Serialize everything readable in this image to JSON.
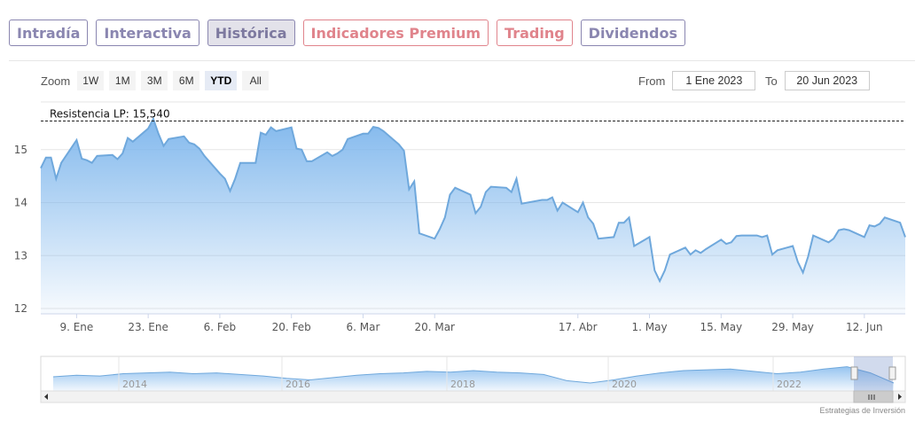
{
  "tabs": [
    {
      "label": "Intradía",
      "style": "normal"
    },
    {
      "label": "Interactiva",
      "style": "normal"
    },
    {
      "label": "Histórica",
      "style": "active"
    },
    {
      "label": "Indicadores Premium",
      "style": "red"
    },
    {
      "label": "Trading",
      "style": "red"
    },
    {
      "label": "Dividendos",
      "style": "normal"
    }
  ],
  "zoom": {
    "label": "Zoom",
    "buttons": [
      "1W",
      "1M",
      "3M",
      "6M",
      "YTD",
      "All"
    ],
    "selected": "YTD"
  },
  "range": {
    "from_label": "From",
    "from_value": "1 Ene 2023",
    "to_label": "To",
    "to_value": "20 Jun 2023"
  },
  "credit": "Estrategias de Inversión",
  "colors": {
    "line": "#6fa8dc",
    "fill_top": "#7cb5ec",
    "tab_normal": "#8a86b0",
    "tab_red": "#e0848c"
  },
  "chart_data": {
    "type": "area",
    "x_unit": "date",
    "ylim": [
      11.9,
      15.9
    ],
    "y_ticks": [
      12,
      13,
      14,
      15
    ],
    "x_ticks": [
      {
        "date": "2023-01-09",
        "label": "9. Ene"
      },
      {
        "date": "2023-01-23",
        "label": "23. Ene"
      },
      {
        "date": "2023-02-06",
        "label": "6. Feb"
      },
      {
        "date": "2023-02-20",
        "label": "20. Feb"
      },
      {
        "date": "2023-03-06",
        "label": "6. Mar"
      },
      {
        "date": "2023-03-20",
        "label": "20. Mar"
      },
      {
        "date": "2023-04-17",
        "label": "17. Abr"
      },
      {
        "date": "2023-05-01",
        "label": "1. May"
      },
      {
        "date": "2023-05-15",
        "label": "15. May"
      },
      {
        "date": "2023-05-29",
        "label": "29. May"
      },
      {
        "date": "2023-06-12",
        "label": "12. Jun"
      }
    ],
    "x_start": "2023-01-02",
    "x_end": "2023-06-20",
    "grid": true,
    "reference_line": {
      "value": 15.54,
      "label": "Resistencia LP: 15,540",
      "style": "dashed"
    },
    "series": [
      {
        "points": [
          [
            "2023-01-02",
            14.65
          ],
          [
            "2023-01-03",
            14.85
          ],
          [
            "2023-01-04",
            14.85
          ],
          [
            "2023-01-05",
            14.45
          ],
          [
            "2023-01-06",
            14.75
          ],
          [
            "2023-01-09",
            15.18
          ],
          [
            "2023-01-10",
            14.83
          ],
          [
            "2023-01-11",
            14.8
          ],
          [
            "2023-01-12",
            14.75
          ],
          [
            "2023-01-13",
            14.88
          ],
          [
            "2023-01-16",
            14.9
          ],
          [
            "2023-01-17",
            14.82
          ],
          [
            "2023-01-18",
            14.93
          ],
          [
            "2023-01-19",
            15.22
          ],
          [
            "2023-01-20",
            15.15
          ],
          [
            "2023-01-23",
            15.4
          ],
          [
            "2023-01-24",
            15.58
          ],
          [
            "2023-01-25",
            15.3
          ],
          [
            "2023-01-26",
            15.07
          ],
          [
            "2023-01-27",
            15.2
          ],
          [
            "2023-01-30",
            15.25
          ],
          [
            "2023-01-31",
            15.13
          ],
          [
            "2023-02-01",
            15.1
          ],
          [
            "2023-02-02",
            15.02
          ],
          [
            "2023-02-03",
            14.88
          ],
          [
            "2023-02-06",
            14.55
          ],
          [
            "2023-02-07",
            14.45
          ],
          [
            "2023-02-08",
            14.22
          ],
          [
            "2023-02-09",
            14.45
          ],
          [
            "2023-02-10",
            14.75
          ],
          [
            "2023-02-13",
            14.75
          ],
          [
            "2023-02-14",
            15.32
          ],
          [
            "2023-02-15",
            15.28
          ],
          [
            "2023-02-16",
            15.42
          ],
          [
            "2023-02-17",
            15.35
          ],
          [
            "2023-02-20",
            15.42
          ],
          [
            "2023-02-21",
            15.02
          ],
          [
            "2023-02-22",
            15.0
          ],
          [
            "2023-02-23",
            14.78
          ],
          [
            "2023-02-24",
            14.78
          ],
          [
            "2023-02-27",
            14.95
          ],
          [
            "2023-02-28",
            14.88
          ],
          [
            "2023-03-01",
            14.93
          ],
          [
            "2023-03-02",
            15.0
          ],
          [
            "2023-03-03",
            15.2
          ],
          [
            "2023-03-06",
            15.3
          ],
          [
            "2023-03-07",
            15.3
          ],
          [
            "2023-03-08",
            15.43
          ],
          [
            "2023-03-09",
            15.41
          ],
          [
            "2023-03-10",
            15.35
          ],
          [
            "2023-03-13",
            15.1
          ],
          [
            "2023-03-14",
            14.98
          ],
          [
            "2023-03-15",
            14.25
          ],
          [
            "2023-03-16",
            14.4
          ],
          [
            "2023-03-17",
            13.42
          ],
          [
            "2023-03-20",
            13.32
          ],
          [
            "2023-03-21",
            13.5
          ],
          [
            "2023-03-22",
            13.72
          ],
          [
            "2023-03-23",
            14.15
          ],
          [
            "2023-03-24",
            14.28
          ],
          [
            "2023-03-27",
            14.15
          ],
          [
            "2023-03-28",
            13.8
          ],
          [
            "2023-03-29",
            13.92
          ],
          [
            "2023-03-30",
            14.2
          ],
          [
            "2023-03-31",
            14.3
          ],
          [
            "2023-04-03",
            14.28
          ],
          [
            "2023-04-04",
            14.2
          ],
          [
            "2023-04-05",
            14.45
          ],
          [
            "2023-04-06",
            13.98
          ],
          [
            "2023-04-10",
            14.05
          ],
          [
            "2023-04-11",
            14.05
          ],
          [
            "2023-04-12",
            14.1
          ],
          [
            "2023-04-13",
            13.85
          ],
          [
            "2023-04-14",
            14.0
          ],
          [
            "2023-04-17",
            13.82
          ],
          [
            "2023-04-18",
            14.0
          ],
          [
            "2023-04-19",
            13.72
          ],
          [
            "2023-04-20",
            13.6
          ],
          [
            "2023-04-21",
            13.32
          ],
          [
            "2023-04-24",
            13.35
          ],
          [
            "2023-04-25",
            13.62
          ],
          [
            "2023-04-26",
            13.62
          ],
          [
            "2023-04-27",
            13.72
          ],
          [
            "2023-04-28",
            13.18
          ],
          [
            "2023-05-01",
            13.35
          ],
          [
            "2023-05-02",
            12.72
          ],
          [
            "2023-05-03",
            12.52
          ],
          [
            "2023-05-04",
            12.72
          ],
          [
            "2023-05-05",
            13.02
          ],
          [
            "2023-05-08",
            13.15
          ],
          [
            "2023-05-09",
            13.02
          ],
          [
            "2023-05-10",
            13.1
          ],
          [
            "2023-05-11",
            13.05
          ],
          [
            "2023-05-12",
            13.12
          ],
          [
            "2023-05-15",
            13.3
          ],
          [
            "2023-05-16",
            13.22
          ],
          [
            "2023-05-17",
            13.25
          ],
          [
            "2023-05-18",
            13.37
          ],
          [
            "2023-05-19",
            13.38
          ],
          [
            "2023-05-22",
            13.38
          ],
          [
            "2023-05-23",
            13.35
          ],
          [
            "2023-05-24",
            13.38
          ],
          [
            "2023-05-25",
            13.02
          ],
          [
            "2023-05-26",
            13.1
          ],
          [
            "2023-05-29",
            13.18
          ],
          [
            "2023-05-30",
            12.88
          ],
          [
            "2023-05-31",
            12.68
          ],
          [
            "2023-06-01",
            12.98
          ],
          [
            "2023-06-02",
            13.38
          ],
          [
            "2023-06-05",
            13.25
          ],
          [
            "2023-06-06",
            13.32
          ],
          [
            "2023-06-07",
            13.48
          ],
          [
            "2023-06-08",
            13.5
          ],
          [
            "2023-06-09",
            13.48
          ],
          [
            "2023-06-12",
            13.35
          ],
          [
            "2023-06-13",
            13.57
          ],
          [
            "2023-06-14",
            13.55
          ],
          [
            "2023-06-15",
            13.6
          ],
          [
            "2023-06-16",
            13.72
          ],
          [
            "2023-06-19",
            13.62
          ],
          [
            "2023-06-20",
            13.35
          ]
        ]
      }
    ],
    "navigator": {
      "x_labels": [
        "2014",
        "2016",
        "2018",
        "2020",
        "2022"
      ],
      "overview": [
        14.1,
        14.3,
        14.2,
        14.5,
        14.6,
        14.7,
        14.5,
        14.6,
        14.4,
        14.2,
        13.9,
        13.7,
        14.0,
        14.3,
        14.5,
        14.6,
        14.8,
        14.7,
        14.9,
        14.7,
        14.6,
        14.4,
        13.6,
        13.3,
        13.7,
        14.2,
        14.6,
        14.9,
        15.0,
        15.1,
        14.8,
        14.5,
        14.7,
        15.1,
        15.4,
        14.6,
        13.3
      ]
    }
  }
}
